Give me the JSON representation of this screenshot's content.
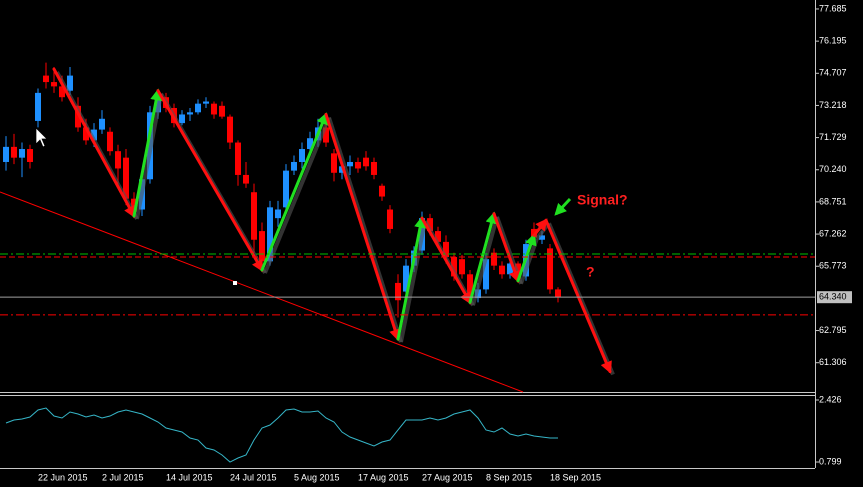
{
  "chart_data": [
    {
      "type": "candlestick",
      "categories": [
        null,
        null,
        null,
        null,
        "22 Jun 2015",
        null,
        null,
        null,
        null,
        null,
        null,
        null,
        "2 Jul 2015",
        null,
        null,
        null,
        null,
        null,
        null,
        null,
        "14 Jul 2015",
        null,
        null,
        null,
        null,
        null,
        null,
        null,
        "24 Jul 2015",
        null,
        null,
        null,
        null,
        null,
        null,
        null,
        "5 Aug 2015",
        null,
        null,
        null,
        null,
        null,
        null,
        null,
        "17 Aug 2015",
        null,
        null,
        null,
        null,
        null,
        null,
        null,
        "27 Aug 2015",
        null,
        null,
        null,
        null,
        null,
        null,
        null,
        "8 Sep 2015",
        null,
        null,
        null,
        null,
        null,
        null,
        null,
        "18 Sep 2015",
        null
      ],
      "open": [
        70.6,
        71.3,
        70.8,
        71.2,
        72.5,
        74.6,
        74.3,
        74.1,
        73.9,
        73.2,
        72.2,
        71.6,
        72.1,
        72.0,
        71.1,
        70.8,
        68.9,
        68.4,
        69.8,
        72.9,
        73.6,
        73.1,
        72.4,
        72.8,
        72.9,
        73.3,
        73.3,
        73.2,
        72.7,
        71.5,
        70.0,
        69.2,
        67.4,
        66.0,
        68.0,
        68.5,
        70.2,
        70.6,
        71.2,
        71.6,
        72.2,
        71.0,
        70.1,
        70.4,
        70.6,
        70.8,
        70.6,
        69.5,
        68.4,
        65.0,
        64.6,
        65.8,
        66.5,
        68.0,
        67.4,
        66.9,
        66.2,
        66.1,
        65.4,
        64.3,
        64.7,
        66.4,
        65.8,
        65.4,
        65.9,
        65.3,
        67.5,
        67.0,
        66.6,
        64.7
      ],
      "high": [
        71.8,
        71.9,
        71.5,
        71.4,
        74.0,
        75.2,
        75.0,
        74.6,
        75.0,
        73.6,
        72.6,
        72.4,
        73.0,
        72.2,
        71.4,
        71.2,
        69.2,
        70.1,
        73.2,
        73.9,
        73.8,
        73.3,
        73.0,
        73.1,
        73.5,
        73.6,
        73.4,
        73.4,
        72.8,
        71.6,
        70.6,
        69.6,
        67.8,
        68.8,
        68.8,
        70.5,
        70.9,
        71.5,
        72.0,
        72.6,
        72.4,
        71.2,
        70.6,
        70.9,
        70.8,
        71.1,
        70.8,
        69.6,
        68.6,
        65.4,
        66.1,
        66.7,
        68.3,
        68.2,
        67.6,
        67.2,
        66.4,
        66.3,
        65.6,
        65.0,
        66.4,
        66.6,
        66.0,
        66.1,
        66.0,
        67.0,
        67.8,
        67.4,
        66.8,
        64.8
      ],
      "low": [
        70.2,
        70.5,
        69.9,
        70.3,
        72.2,
        74.0,
        73.8,
        73.4,
        73.7,
        72.0,
        71.4,
        71.3,
        71.9,
        70.9,
        69.5,
        68.6,
        68.0,
        68.1,
        69.6,
        72.6,
        72.9,
        72.2,
        72.3,
        72.5,
        72.8,
        73.1,
        72.6,
        72.6,
        71.2,
        69.5,
        69.4,
        66.4,
        65.5,
        65.8,
        67.6,
        68.2,
        70.0,
        70.3,
        70.9,
        71.3,
        71.3,
        69.7,
        69.8,
        70.0,
        70.1,
        70.2,
        69.8,
        68.8,
        67.3,
        63.4,
        64.4,
        65.5,
        66.3,
        67.2,
        66.6,
        65.9,
        65.1,
        65.2,
        64.0,
        64.1,
        64.5,
        65.6,
        65.2,
        65.2,
        65.0,
        65.1,
        66.9,
        66.8,
        64.5,
        64.1
      ],
      "close": [
        71.3,
        70.8,
        71.2,
        70.6,
        73.8,
        74.3,
        74.1,
        73.6,
        74.6,
        72.2,
        71.6,
        72.1,
        72.6,
        71.1,
        70.3,
        68.9,
        68.3,
        69.8,
        72.9,
        73.6,
        73.1,
        72.4,
        72.8,
        72.9,
        73.3,
        73.4,
        72.8,
        72.7,
        71.5,
        70.0,
        69.6,
        67.0,
        66.0,
        68.5,
        68.4,
        70.2,
        70.6,
        71.2,
        71.7,
        72.2,
        71.5,
        70.1,
        70.4,
        70.6,
        70.3,
        70.4,
        70.0,
        69.0,
        67.5,
        64.2,
        65.8,
        66.5,
        68.0,
        67.4,
        66.9,
        66.2,
        65.3,
        65.4,
        64.3,
        64.7,
        66.1,
        65.8,
        65.4,
        65.9,
        65.2,
        66.8,
        67.1,
        67.2,
        64.7,
        64.34
      ],
      "up_color": "#1e90ff",
      "down_color": "#ff0000",
      "ylim": [
        59.95,
        78.1
      ],
      "yticks": [
        77.685,
        76.195,
        74.707,
        73.218,
        71.729,
        {
          "value": 70.24,
          "label": "70.240"
        },
        68.751,
        67.262,
        65.773,
        62.795,
        61.306
      ],
      "last_price": {
        "value": 64.34,
        "label": "64.340"
      },
      "levels": [
        {
          "value": 66.34,
          "color": "#00c000",
          "style": "dashdot"
        },
        {
          "value": 66.2,
          "color": "#ff0000",
          "style": "dash"
        },
        {
          "value": 63.52,
          "color": "#ff0000",
          "style": "dashdot"
        }
      ],
      "zigzag": {
        "x": [
          6,
          16,
          19,
          32,
          40,
          49,
          52,
          58,
          61,
          64,
          66,
          67.5,
          75.5
        ],
        "values": [
          74.9,
          68.1,
          73.9,
          65.6,
          72.8,
          62.4,
          68.0,
          64.1,
          68.2,
          65.1,
          67.2,
          67.9,
          60.9
        ],
        "colors": [
          "#ff1010",
          "#20e020",
          "#ff1010",
          "#20e020",
          "#ff1010",
          "#20e020",
          "#ff1010",
          "#20e020",
          "#ff1010",
          "#20e020",
          "#ff1010",
          "#ff1010"
        ]
      },
      "annotations": [
        "Signal?",
        "?"
      ]
    },
    {
      "type": "line",
      "color": "#36b6c8",
      "values": [
        1.822,
        1.901,
        1.927,
        1.98,
        2.164,
        2.216,
        2.006,
        1.954,
        2.111,
        2.059,
        1.98,
        2.032,
        1.954,
        2.006,
        2.111,
        2.164,
        2.111,
        2.059,
        1.954,
        1.849,
        1.691,
        1.639,
        1.586,
        1.429,
        1.376,
        1.166,
        1.114,
        0.983,
        0.799,
        0.904,
        0.983,
        1.376,
        1.691,
        1.77,
        1.954,
        2.164,
        2.19,
        2.111,
        2.111,
        2.137,
        1.954,
        1.849,
        1.586,
        1.455,
        1.376,
        1.298,
        1.219,
        1.324,
        1.376,
        1.639,
        1.901,
        1.901,
        1.901,
        1.954,
        1.901,
        1.954,
        2.059,
        2.111,
        2.164,
        1.954,
        1.639,
        1.586,
        1.691,
        1.534,
        1.481,
        1.534,
        1.481,
        1.455,
        1.429,
        1.429
      ],
      "ylim": [
        0.642,
        2.531
      ],
      "yticks": [
        2.426,
        0.799
      ]
    }
  ]
}
